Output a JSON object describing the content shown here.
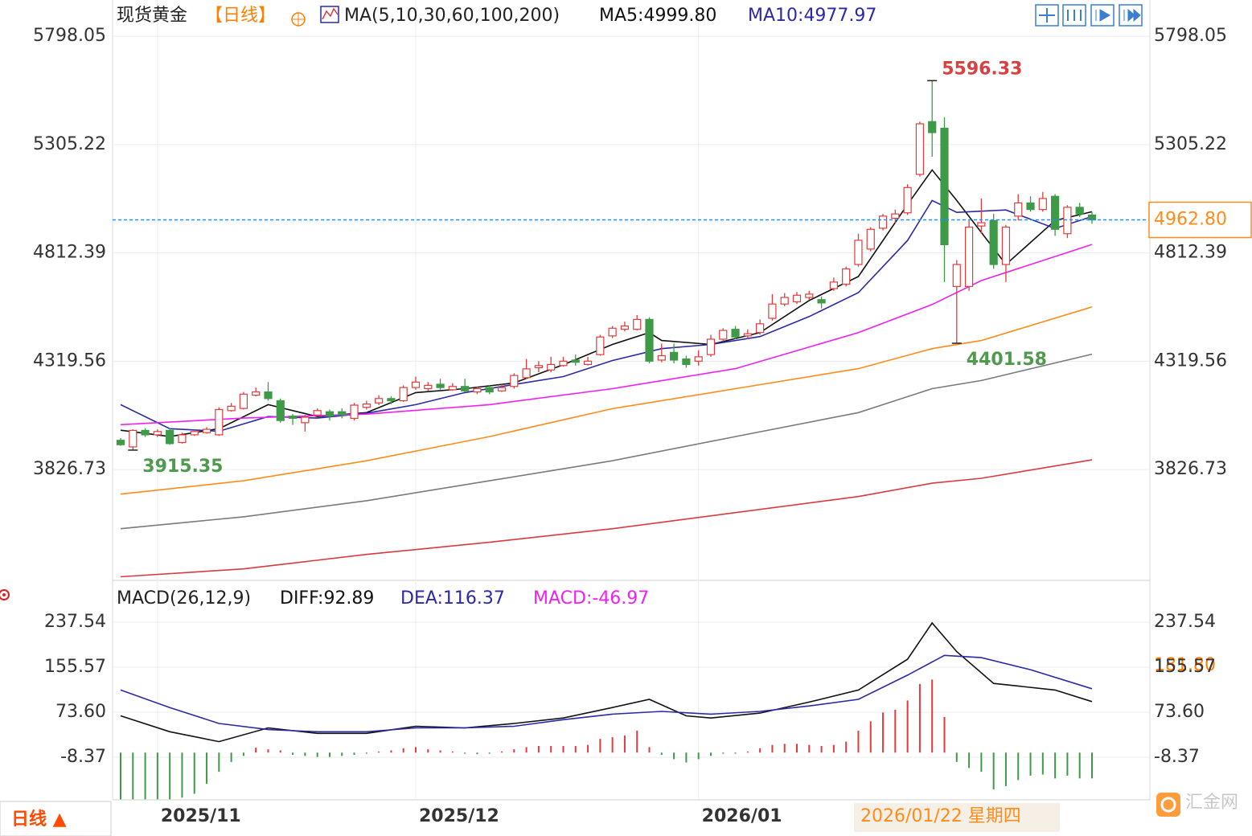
{
  "chart_data": [
    {
      "type": "candlestick",
      "title": "现货黄金",
      "period": "【日线】",
      "indicator": "MA(5,10,30,60,100,200)",
      "indicator_values": [
        {
          "text": "MA5:4999.80",
          "color": "#111111"
        },
        {
          "text": "MA10:4977.97",
          "color": "#2a2aa8"
        }
      ],
      "up_color": "#e23b3b",
      "down_color": "#3f9a47",
      "categories": [
        null,
        null,
        null,
        "2025/11",
        null,
        null,
        null,
        null,
        null,
        null,
        null,
        null,
        null,
        null,
        null,
        null,
        null,
        null,
        null,
        null,
        null,
        null,
        null,
        null,
        "2025/12",
        null,
        null,
        null,
        null,
        null,
        null,
        null,
        null,
        null,
        null,
        null,
        null,
        null,
        null,
        null,
        null,
        null,
        null,
        null,
        null,
        null,
        null,
        "2026/01",
        null,
        null,
        null,
        null,
        null,
        null,
        null,
        null,
        null,
        null,
        null,
        null,
        null,
        null,
        null,
        null,
        null,
        null,
        null,
        null,
        null,
        null,
        null,
        null,
        null,
        null,
        null,
        null,
        null,
        null,
        null,
        null
      ],
      "open": [
        3960,
        3930,
        4005,
        3985,
        4005,
        3950,
        3985,
        3995,
        3985,
        4095,
        4105,
        4165,
        4180,
        4140,
        4070,
        4040,
        4075,
        4090,
        4090,
        4060,
        4110,
        4130,
        4150,
        4140,
        4200,
        4195,
        4215,
        4190,
        4205,
        4180,
        4200,
        4185,
        4205,
        4245,
        4290,
        4280,
        4300,
        4325,
        4305,
        4350,
        4435,
        4465,
        4465,
        4510,
        4325,
        4360,
        4330,
        4320,
        4350,
        4420,
        4465,
        4435,
        4450,
        4515,
        4580,
        4590,
        4610,
        4600,
        4650,
        4670,
        4760,
        4830,
        4925,
        4970,
        4995,
        5170,
        5410,
        5380,
        4660,
        4660,
        4935,
        4960,
        4760,
        4980,
        5040,
        5010,
        5070,
        4900,
        5020,
        4985
      ],
      "high": [
        3970,
        4010,
        4015,
        4010,
        4015,
        3995,
        4010,
        4020,
        4110,
        4130,
        4180,
        4200,
        4225,
        4150,
        4080,
        4075,
        4105,
        4100,
        4105,
        4130,
        4140,
        4165,
        4160,
        4210,
        4250,
        4225,
        4240,
        4220,
        4240,
        4205,
        4210,
        4215,
        4265,
        4330,
        4320,
        4340,
        4340,
        4350,
        4340,
        4440,
        4480,
        4500,
        4530,
        4520,
        4400,
        4400,
        4345,
        4370,
        4440,
        4470,
        4480,
        4465,
        4510,
        4625,
        4630,
        4635,
        4640,
        4615,
        4700,
        4750,
        4900,
        4930,
        4990,
        5010,
        5125,
        5410,
        5596.33,
        5430,
        4780,
        4960,
        5060,
        4990,
        4940,
        5080,
        5070,
        5090,
        5080,
        5030,
        5040,
        5000
      ],
      "low": [
        3935,
        3915.35,
        3975,
        3975,
        3940,
        3945,
        3980,
        3990,
        3980,
        4090,
        4100,
        4160,
        4140,
        4040,
        4030,
        4000,
        4070,
        4050,
        4060,
        4050,
        4100,
        4120,
        4125,
        4135,
        4190,
        4185,
        4190,
        4185,
        4180,
        4170,
        4170,
        4180,
        4195,
        4240,
        4270,
        4270,
        4295,
        4300,
        4300,
        4345,
        4425,
        4455,
        4460,
        4310,
        4315,
        4310,
        4290,
        4300,
        4340,
        4410,
        4420,
        4420,
        4440,
        4505,
        4570,
        4580,
        4600,
        4560,
        4640,
        4660,
        4750,
        4820,
        4915,
        4950,
        4985,
        5160,
        5250,
        4680,
        4401.58,
        4640,
        4900,
        4740,
        4680,
        4960,
        5000,
        5000,
        4890,
        4880,
        4975,
        4945
      ],
      "close": [
        3940,
        4005,
        3985,
        4000,
        3945,
        3985,
        4000,
        4010,
        4100,
        4115,
        4170,
        4180,
        4150,
        4050,
        4060,
        4065,
        4095,
        4070,
        4075,
        4120,
        4125,
        4150,
        4140,
        4200,
        4225,
        4210,
        4200,
        4205,
        4185,
        4195,
        4180,
        4200,
        4255,
        4285,
        4300,
        4305,
        4320,
        4315,
        4320,
        4430,
        4470,
        4480,
        4510,
        4320,
        4345,
        4325,
        4305,
        4340,
        4420,
        4460,
        4430,
        4445,
        4490,
        4580,
        4610,
        4620,
        4625,
        4585,
        4680,
        4740,
        4870,
        4920,
        4980,
        4990,
        5110,
        5400,
        5360,
        4850,
        4760,
        4930,
        4950,
        4760,
        4930,
        5040,
        5010,
        5060,
        4920,
        5020,
        4990,
        4962.8
      ],
      "series": [
        {
          "color": "#111111",
          "x": [
            0,
            4,
            8,
            12,
            16,
            20,
            24,
            28,
            32,
            36,
            40,
            43,
            44,
            48,
            52,
            56,
            60,
            64,
            66,
            68,
            72,
            76,
            79
          ],
          "values": [
            4006,
            3977,
            4013,
            4122,
            4068,
            4086,
            4177,
            4195,
            4221,
            4304,
            4396,
            4450,
            4414,
            4396,
            4450,
            4596,
            4705,
            5033,
            5190,
            5051,
            4760,
            4960,
            4999.8
          ]
        },
        {
          "color": "#2a2aa8",
          "x": [
            0,
            4,
            8,
            12,
            16,
            20,
            24,
            28,
            32,
            36,
            40,
            44,
            48,
            52,
            56,
            60,
            64,
            66,
            68,
            72,
            76,
            79
          ],
          "values": [
            4122,
            4013,
            4001,
            4068,
            4061,
            4083,
            4122,
            4177,
            4214,
            4250,
            4323,
            4377,
            4396,
            4432,
            4523,
            4632,
            4869,
            5051,
            4997,
            5008,
            4924,
            4977.97
          ]
        },
        {
          "color": "#f020f0",
          "x": [
            0,
            10,
            20,
            30,
            40,
            50,
            60,
            66,
            70,
            79
          ],
          "values": [
            4031,
            4061,
            4079,
            4122,
            4195,
            4286,
            4450,
            4578,
            4687,
            4851
          ]
        },
        {
          "color": "#ff8c1a",
          "x": [
            0,
            10,
            20,
            30,
            40,
            50,
            60,
            66,
            70,
            79
          ],
          "values": [
            3715,
            3776,
            3867,
            3977,
            4104,
            4195,
            4286,
            4377,
            4414,
            4567
          ]
        },
        {
          "color": "#7a7a7a",
          "x": [
            0,
            10,
            20,
            30,
            40,
            50,
            60,
            66,
            70,
            79
          ],
          "values": [
            3558,
            3612,
            3685,
            3776,
            3867,
            3977,
            4086,
            4195,
            4232,
            4352
          ]
        },
        {
          "color": "#d93a40",
          "x": [
            0,
            10,
            20,
            30,
            40,
            50,
            60,
            66,
            70,
            79
          ],
          "values": [
            3339,
            3375,
            3441,
            3496,
            3558,
            3631,
            3704,
            3765,
            3787,
            3871
          ]
        }
      ],
      "ylim": [
        3330,
        5945
      ],
      "yticks": [
        3826.73,
        4319.56,
        4812.39,
        5305.22,
        5798.05
      ],
      "last_price": {
        "value": 4962.8,
        "label": "4962.80"
      },
      "annotations": [
        {
          "index": 66,
          "value": 5596.33,
          "color": "#d94040"
        },
        {
          "index": 68,
          "value": 4401.58,
          "color": "#4f9a4f"
        },
        {
          "index": 1,
          "value": 3915.35,
          "color": "#4f9a4f"
        }
      ],
      "cursor_label": "2026/01/22 星期四"
    },
    {
      "type": "macd",
      "title": "MACD(26,12,9)",
      "legend": [
        {
          "text": "DIFF:92.89",
          "color": "#111111"
        },
        {
          "text": "DEA:116.37",
          "color": "#2a2aa8"
        },
        {
          "text": "MACD:-46.97",
          "color": "#f020f0"
        }
      ],
      "up_color": "#e23b3b",
      "down_color": "#3f9a47",
      "histogram": [
        -85,
        -85,
        -85,
        -85,
        -85,
        -82,
        -75,
        -57,
        -35,
        -17,
        -6,
        9,
        6,
        4,
        -4,
        -6,
        -8,
        -8,
        -6,
        -4,
        -2,
        2,
        4,
        8,
        10,
        6,
        4,
        2,
        -2,
        -3,
        -2,
        2,
        6,
        10,
        12,
        12,
        12,
        12,
        14,
        25,
        28,
        31,
        40,
        10,
        -4,
        -12,
        -18,
        -12,
        -6,
        -2,
        -2,
        2,
        8,
        14,
        16,
        16,
        14,
        12,
        14,
        20,
        40,
        57,
        73,
        78,
        95,
        125,
        133,
        65,
        -17,
        -28,
        -35,
        -67,
        -61,
        -50,
        -42,
        -40,
        -47,
        -42,
        -47,
        -46.97
      ],
      "series": [
        {
          "color": "#111111",
          "x": [
            0,
            4,
            8,
            12,
            16,
            20,
            24,
            28,
            32,
            36,
            40,
            43,
            46,
            48,
            52,
            56,
            60,
            64,
            66,
            68,
            71,
            76,
            79
          ],
          "values": [
            67,
            38,
            20,
            45,
            35,
            35,
            48,
            45,
            53,
            63,
            82,
            97,
            67,
            63,
            72,
            92,
            114,
            170,
            236,
            184,
            126,
            114,
            92.89
          ]
        },
        {
          "color": "#2a2aa8",
          "x": [
            0,
            4,
            8,
            12,
            16,
            20,
            24,
            28,
            32,
            36,
            40,
            44,
            48,
            52,
            56,
            60,
            64,
            67,
            70,
            74,
            79
          ],
          "values": [
            114,
            82,
            53,
            42,
            38,
            38,
            45,
            45,
            48,
            60,
            70,
            75,
            70,
            75,
            85,
            97,
            141,
            177,
            173,
            151,
            116.37
          ]
        }
      ],
      "ylim": [
        -86,
        258
      ],
      "yticks": [
        -8.37,
        {
          "value": 73.6,
          "label": "73.60"
        },
        155.57,
        237.54
      ],
      "cursor_value": "181.80"
    }
  ],
  "ui": {
    "period_button": "日线 ▲",
    "logo": "汇金网"
  }
}
